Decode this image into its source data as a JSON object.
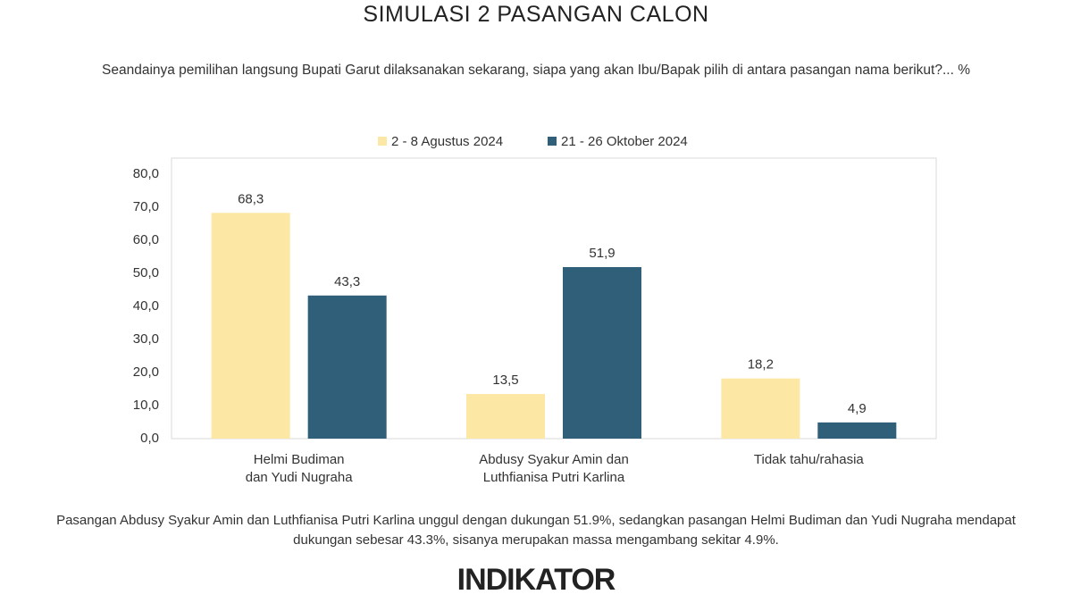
{
  "title": "SIMULASI 2 PASANGAN CALON",
  "subtitle": "Seandainya pemilihan langsung Bupati Garut dilaksanakan sekarang, siapa yang akan Ibu/Bapak pilih di antara pasangan nama berikut?... %",
  "chart_data": {
    "type": "bar",
    "categories": [
      "Helmi Budiman\ndan Yudi Nugraha",
      "Abdusy Syakur Amin dan\nLuthfianisa Putri Karlina",
      "Tidak tahu/rahasia"
    ],
    "series": [
      {
        "name": "2 - 8 Agustus 2024",
        "color": "#fce8a4",
        "values": [
          68.3,
          13.5,
          18.2
        ],
        "value_labels": [
          "68,3",
          "13,5",
          "18,2"
        ]
      },
      {
        "name": "21 - 26 Oktober 2024",
        "color": "#2f5f79",
        "values": [
          43.3,
          51.9,
          4.9
        ],
        "value_labels": [
          "43,3",
          "51,9",
          "4,9"
        ]
      }
    ],
    "ylim": [
      0,
      80
    ],
    "yticks": [
      {
        "value": 0,
        "label": "0,0"
      },
      {
        "value": 10,
        "label": "10,0"
      },
      {
        "value": 20,
        "label": "20,0"
      },
      {
        "value": 30,
        "label": "30,0"
      },
      {
        "value": 40,
        "label": "40,0"
      },
      {
        "value": 50,
        "label": "50,0"
      },
      {
        "value": 60,
        "label": "60,0"
      },
      {
        "value": 70,
        "label": "70,0"
      },
      {
        "value": 80,
        "label": "80,0"
      }
    ],
    "grid": false,
    "legend": "top"
  },
  "note": "Pasangan Abdusy Syakur Amin dan Luthfianisa Putri Karlina unggul dengan dukungan 51.9%, sedangkan pasangan Helmi Budiman dan Yudi Nugraha mendapat dukungan sebesar 43.3%, sisanya merupakan massa mengambang sekitar 4.9%.",
  "logo": "INDIKATOR"
}
